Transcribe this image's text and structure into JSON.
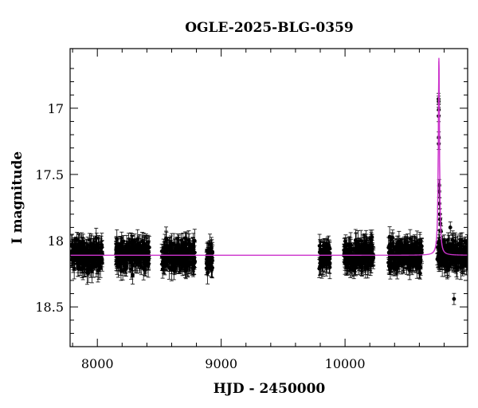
{
  "chart_data": {
    "type": "scatter",
    "title": "OGLE-2025-BLG-0359",
    "xlabel": "HJD - 2450000",
    "ylabel": "I magnitude",
    "xlim": [
      7780,
      10990
    ],
    "ylim": [
      18.8,
      16.55
    ],
    "y_inverted": true,
    "x_ticks": [
      8000,
      9000,
      10000
    ],
    "y_ticks": [
      17,
      17.5,
      18,
      18.5
    ],
    "grid": false,
    "legend": "none",
    "colors": {
      "points": "#000000",
      "model": "#cc33cc"
    },
    "series": [
      {
        "kind": "photometry",
        "baseline_mag": 18.11,
        "scatter_mag": 0.07,
        "typical_error_mag": 0.06,
        "season_ranges": [
          [
            7790,
            8040
          ],
          [
            8150,
            8420
          ],
          [
            8520,
            8790
          ],
          [
            8880,
            8930
          ],
          [
            9790,
            9880
          ],
          [
            9990,
            10230
          ],
          [
            10350,
            10620
          ],
          [
            10750,
            10990
          ]
        ],
        "peak_points": [
          {
            "x": 10755,
            "y": 16.93
          },
          {
            "x": 10756,
            "y": 16.95
          },
          {
            "x": 10757,
            "y": 17.01
          },
          {
            "x": 10756,
            "y": 17.06
          },
          {
            "x": 10757,
            "y": 17.22
          },
          {
            "x": 10757,
            "y": 17.27
          },
          {
            "x": 10760,
            "y": 17.58
          },
          {
            "x": 10760,
            "y": 17.63
          },
          {
            "x": 10762,
            "y": 17.72
          },
          {
            "x": 10765,
            "y": 17.8
          },
          {
            "x": 10768,
            "y": 17.84
          },
          {
            "x": 10770,
            "y": 17.87
          },
          {
            "x": 10775,
            "y": 17.93
          },
          {
            "x": 10850,
            "y": 17.9
          },
          {
            "x": 10880,
            "y": 18.44
          },
          {
            "x": 10747,
            "y": 18.05
          },
          {
            "x": 10745,
            "y": 18.14
          }
        ]
      },
      {
        "kind": "model",
        "baseline_mag": 18.11,
        "peak_x": 10758,
        "peak_mag": 16.62,
        "width_days": 4
      }
    ]
  }
}
